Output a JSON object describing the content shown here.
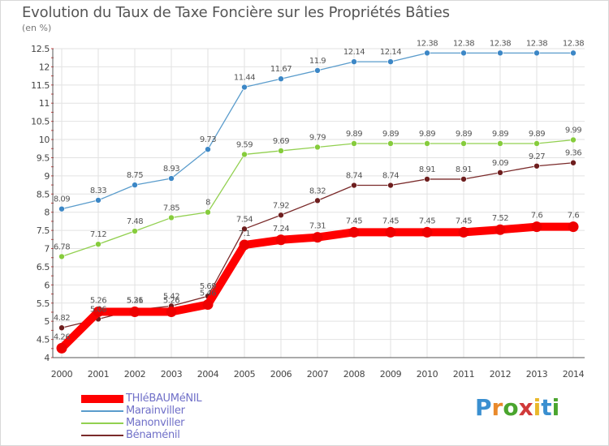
{
  "title": "Evolution du Taux de Taxe Foncière sur les Propriétés Bâties",
  "unit_label": "(en %)",
  "logo": {
    "letters": [
      "P",
      "r",
      "o",
      "x",
      "i",
      "t",
      "i"
    ],
    "colors": [
      "#3a8fd0",
      "#e9892b",
      "#4aa52e",
      "#d03a3a",
      "#e9b82b",
      "#3a8fd0",
      "#4aa52e"
    ]
  },
  "chart_data": {
    "type": "line",
    "title": "Evolution du Taux de Taxe Foncière sur les Propriétés Bâties",
    "ylabel": "(en %)",
    "xlabel": "",
    "ylim": [
      4,
      12.5
    ],
    "yticks": [
      "4",
      "4.5",
      "5",
      "5.5",
      "6",
      "6.5",
      "7",
      "7.5",
      "8",
      "8.5",
      "9",
      "9.5",
      "10",
      "10.5",
      "11",
      "11.5",
      "12",
      "12.5"
    ],
    "ytick_values": [
      4,
      4.5,
      5,
      5.5,
      6,
      6.5,
      7,
      7.5,
      8,
      8.5,
      9,
      9.5,
      10,
      10.5,
      11,
      11.5,
      12,
      12.5
    ],
    "x": [
      "2000",
      "2001",
      "2002",
      "2003",
      "2004",
      "2005",
      "2006",
      "2007",
      "2008",
      "2009",
      "2010",
      "2011",
      "2012",
      "2013",
      "2014"
    ],
    "series": [
      {
        "name": "Marainviller",
        "color": "#5a9ccc",
        "dot": "#3c87c6",
        "values": [
          8.09,
          8.33,
          8.75,
          8.93,
          9.73,
          11.44,
          11.67,
          11.9,
          12.14,
          12.14,
          12.38,
          12.38,
          12.38,
          12.38,
          12.38
        ],
        "labels": [
          "8.09",
          "8.33",
          "8.75",
          "8.93",
          "9.73",
          "11.44",
          "11.67",
          "11.9",
          "12.14",
          "12.14",
          "12.38",
          "12.38",
          "12.38",
          "12.38",
          "12.38"
        ]
      },
      {
        "name": "Manonviller",
        "color": "#92d050",
        "dot": "#86cc3c",
        "values": [
          6.78,
          7.12,
          7.48,
          7.85,
          8,
          9.59,
          9.69,
          9.79,
          9.89,
          9.89,
          9.89,
          9.89,
          9.89,
          9.89,
          9.99
        ],
        "labels": [
          "6.78",
          "7.12",
          "7.48",
          "7.85",
          "8",
          "9.59",
          "9.69",
          "9.79",
          "9.89",
          "9.89",
          "9.89",
          "9.89",
          "9.89",
          "9.89",
          "9.99"
        ]
      },
      {
        "name": "Bénaménil",
        "color": "#7a2a2a",
        "dot": "#6e1e1e",
        "values": [
          4.82,
          5.06,
          5.31,
          5.42,
          5.69,
          7.54,
          7.92,
          8.32,
          8.74,
          8.74,
          8.91,
          8.91,
          9.09,
          9.27,
          9.36
        ],
        "labels": [
          "4.82",
          "5.06",
          "5.31",
          "5.42",
          "5.69",
          "7.54",
          "7.92",
          "8.32",
          "8.74",
          "8.74",
          "8.91",
          "8.91",
          "9.09",
          "9.27",
          "9.36"
        ]
      },
      {
        "name": "THIéBAUMéNIL",
        "color": "#ff0000",
        "dot": "#ee0000",
        "values": [
          4.26,
          5.26,
          5.26,
          5.26,
          5.46,
          7.1,
          7.24,
          7.31,
          7.45,
          7.45,
          7.45,
          7.45,
          7.52,
          7.6,
          7.6
        ],
        "labels": [
          "4.26",
          "5.26",
          "5.26",
          "5.26",
          "5.46",
          "7.1",
          "7.24",
          "7.31",
          "7.45",
          "7.45",
          "7.45",
          "7.45",
          "7.52",
          "7.6",
          "7.6"
        ]
      }
    ],
    "legend": [
      "THIéBAUMéNIL",
      "Marainviller",
      "Manonviller",
      "Bénaménil"
    ],
    "legend_position": "bottom-left",
    "grid": true
  }
}
